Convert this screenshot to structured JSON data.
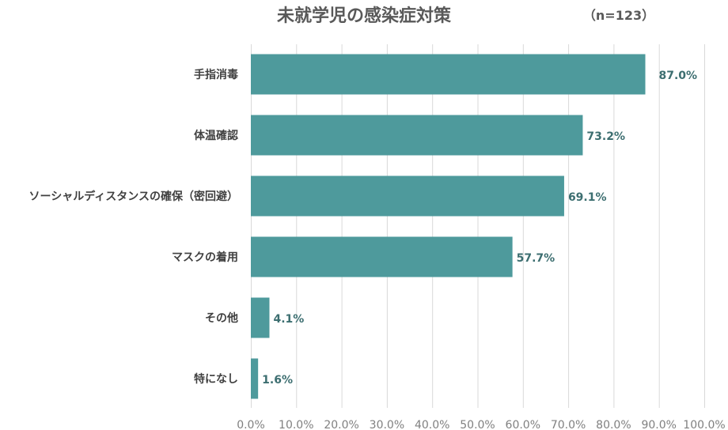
{
  "chart_data": {
    "type": "bar",
    "orientation": "horizontal",
    "title": "未就学児の感染症対策",
    "note": "（n=123）",
    "categories": [
      "手指消毒",
      "体温確認",
      "ソーシャルディスタンスの確保（密回避）",
      "マスクの着用",
      "その他",
      "特になし"
    ],
    "values": [
      87.0,
      73.2,
      69.1,
      57.7,
      4.1,
      1.6
    ],
    "value_labels": [
      "87.0%",
      "73.2%",
      "69.1%",
      "57.7%",
      "4.1%",
      "1.6%"
    ],
    "xlim": [
      0,
      100
    ],
    "ticks": [
      0,
      10,
      20,
      30,
      40,
      50,
      60,
      70,
      80,
      90,
      100
    ],
    "tick_labels": [
      "0.0%",
      "10.0%",
      "20.0%",
      "30.0%",
      "40.0%",
      "50.0%",
      "60.0%",
      "70.0%",
      "80.0%",
      "90.0%",
      "100.0%"
    ],
    "grid": true,
    "legend": "none",
    "bar_color": "#4e9a9c",
    "value_label_color": "#3c6e70"
  }
}
